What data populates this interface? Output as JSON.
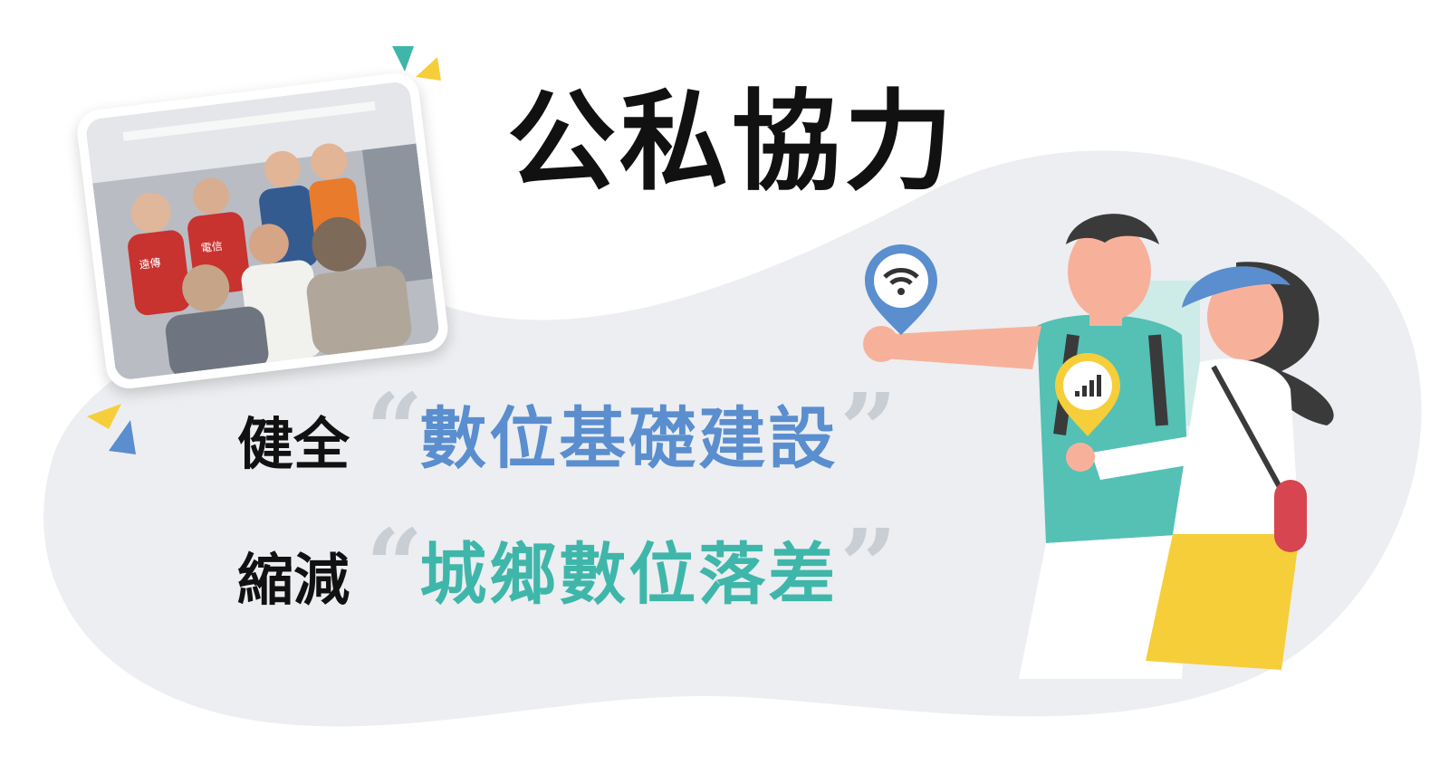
{
  "title": "公私協力",
  "line1": {
    "lead": "健全",
    "highlight": "數位基礎建設",
    "quote_open": "“",
    "quote_close": "”"
  },
  "line2": {
    "lead": "縮減",
    "highlight": "城鄉數位落差",
    "quote_open": "“",
    "quote_close": "”"
  },
  "photo": {
    "vest_text_left": "遠傳",
    "vest_text_right": "電信"
  },
  "colors": {
    "blob": "#eceef1",
    "blue": "#5a8ece",
    "teal": "#3fb6aa",
    "yellow": "#f5ce3a",
    "shirt": "#55c0b4",
    "skin": "#f7b19b",
    "red": "#d64550"
  },
  "icons": [
    "wifi-pin-icon",
    "signal-pin-icon",
    "triangle-decoration-icon"
  ]
}
